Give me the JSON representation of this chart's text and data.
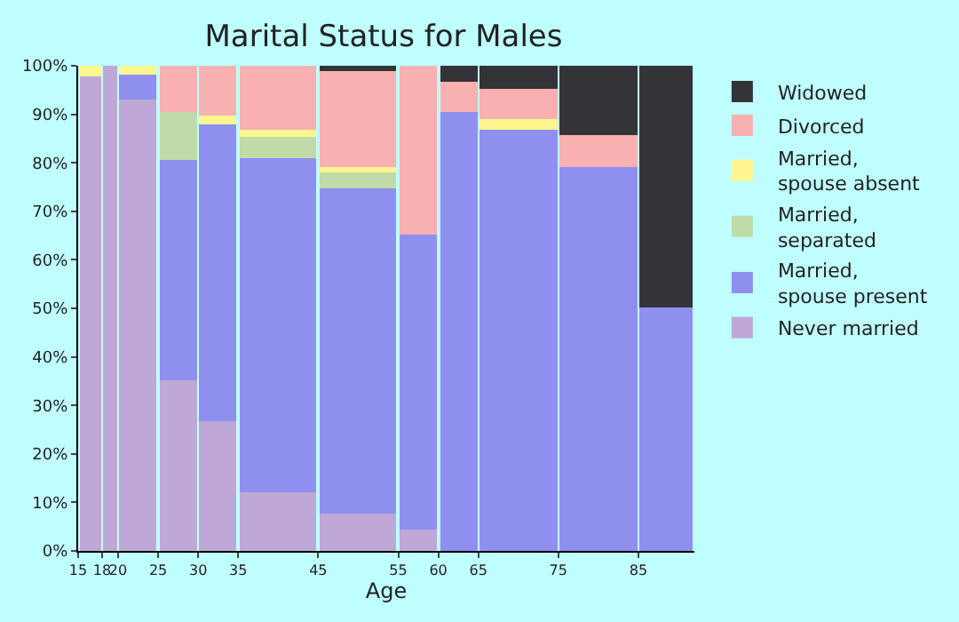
{
  "chart_data": {
    "type": "bar",
    "stacked": true,
    "title": "Marital Status for Males",
    "xlabel": "Age",
    "x": [
      16.5,
      19,
      22.5,
      27.5,
      32.5,
      40,
      50,
      57.5,
      62.5,
      70,
      80,
      88.5
    ],
    "xlim": [
      15,
      92
    ],
    "xticks": [
      15,
      18,
      20,
      25,
      30,
      35,
      45,
      55,
      60,
      65,
      75,
      85
    ],
    "ylim": [
      0,
      100
    ],
    "yticks": [
      {
        "value": 0,
        "label": "0%"
      },
      {
        "value": 10,
        "label": "10%"
      },
      {
        "value": 20,
        "label": "20%"
      },
      {
        "value": 30,
        "label": "30%"
      },
      {
        "value": 40,
        "label": "40%"
      },
      {
        "value": 50,
        "label": "50%"
      },
      {
        "value": 60,
        "label": "60%"
      },
      {
        "value": 70,
        "label": "70%"
      },
      {
        "value": 80,
        "label": "80%"
      },
      {
        "value": 90,
        "label": "90%"
      },
      {
        "value": 100,
        "label": "100%"
      }
    ],
    "legend": "right",
    "series": [
      {
        "name": "Never married",
        "color": "#bfa8d8",
        "values": [
          97.7,
          100,
          93.2,
          35.2,
          26.8,
          12.1,
          7.8,
          4.5,
          0,
          0,
          0,
          0
        ]
      },
      {
        "name": "Married, spouse present",
        "color": "#8f8ff0",
        "values": [
          0,
          0,
          5.1,
          45.5,
          61.2,
          69.0,
          67.0,
          60.8,
          90.6,
          86.9,
          79.2,
          50.2
        ]
      },
      {
        "name": "Married, separated",
        "color": "#c0dba8",
        "values": [
          0,
          0,
          0,
          9.8,
          0,
          4.4,
          3.3,
          0,
          0,
          0,
          0,
          0
        ]
      },
      {
        "name": "Married, spouse absent",
        "color": "#fff68f",
        "values": [
          2.3,
          0,
          1.7,
          0,
          1.9,
          1.4,
          1.1,
          0,
          0,
          2.2,
          0,
          0
        ]
      },
      {
        "name": "Divorced",
        "color": "#f8b0b0",
        "values": [
          0,
          0,
          0,
          9.5,
          10.1,
          13.1,
          19.8,
          34.7,
          6.2,
          6.3,
          6.6,
          0
        ]
      },
      {
        "name": "Widowed",
        "color": "#333338",
        "values": [
          0,
          0,
          0,
          0,
          0,
          0,
          1.0,
          0,
          3.2,
          4.6,
          14.2,
          49.8
        ]
      }
    ]
  }
}
